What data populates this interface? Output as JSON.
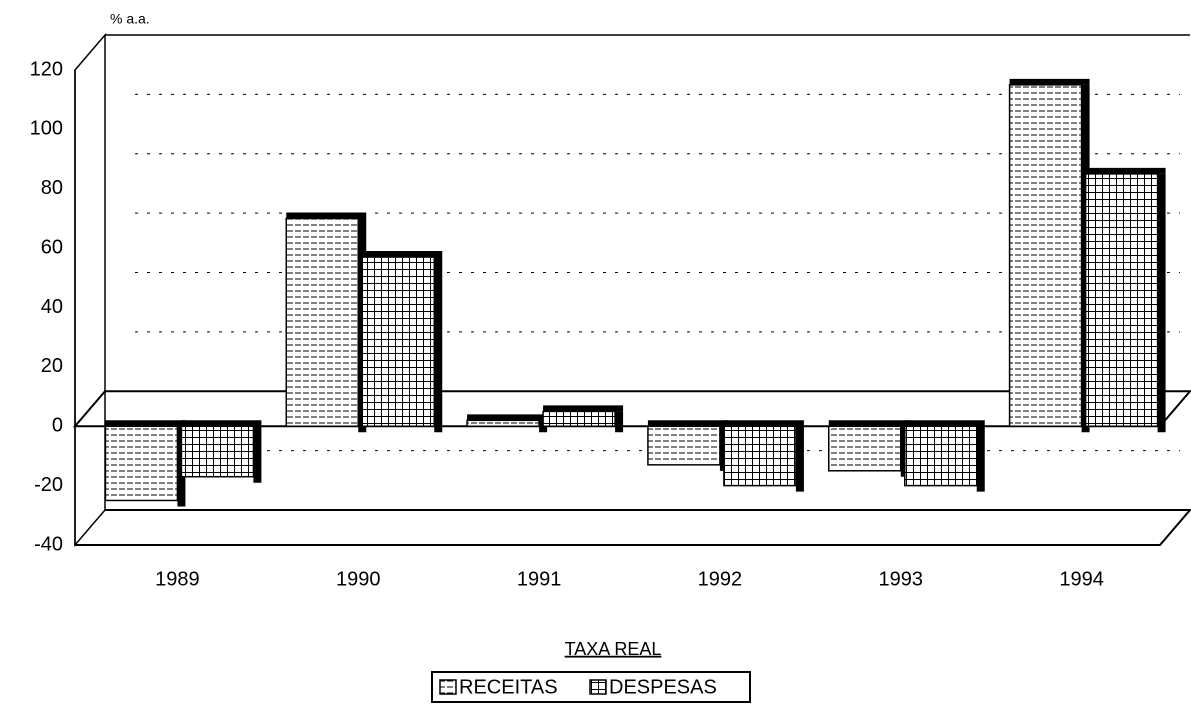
{
  "chart_data": {
    "type": "bar",
    "title": "TAXA REAL",
    "y_label": "% a.a.",
    "categories": [
      "1989",
      "1990",
      "1991",
      "1992",
      "1993",
      "1994"
    ],
    "series": [
      {
        "name": "RECEITAS",
        "color": "#ffffff",
        "values": [
          -25,
          70,
          2,
          -13,
          -15,
          115
        ]
      },
      {
        "name": "DESPESAS",
        "color": "#ffffff",
        "values": [
          -17,
          57,
          5,
          -20,
          -20,
          85
        ]
      }
    ],
    "ylim": [
      -40,
      120
    ],
    "yticks": [
      -40,
      -20,
      0,
      20,
      40,
      60,
      80,
      100,
      120
    ],
    "grid": true
  }
}
